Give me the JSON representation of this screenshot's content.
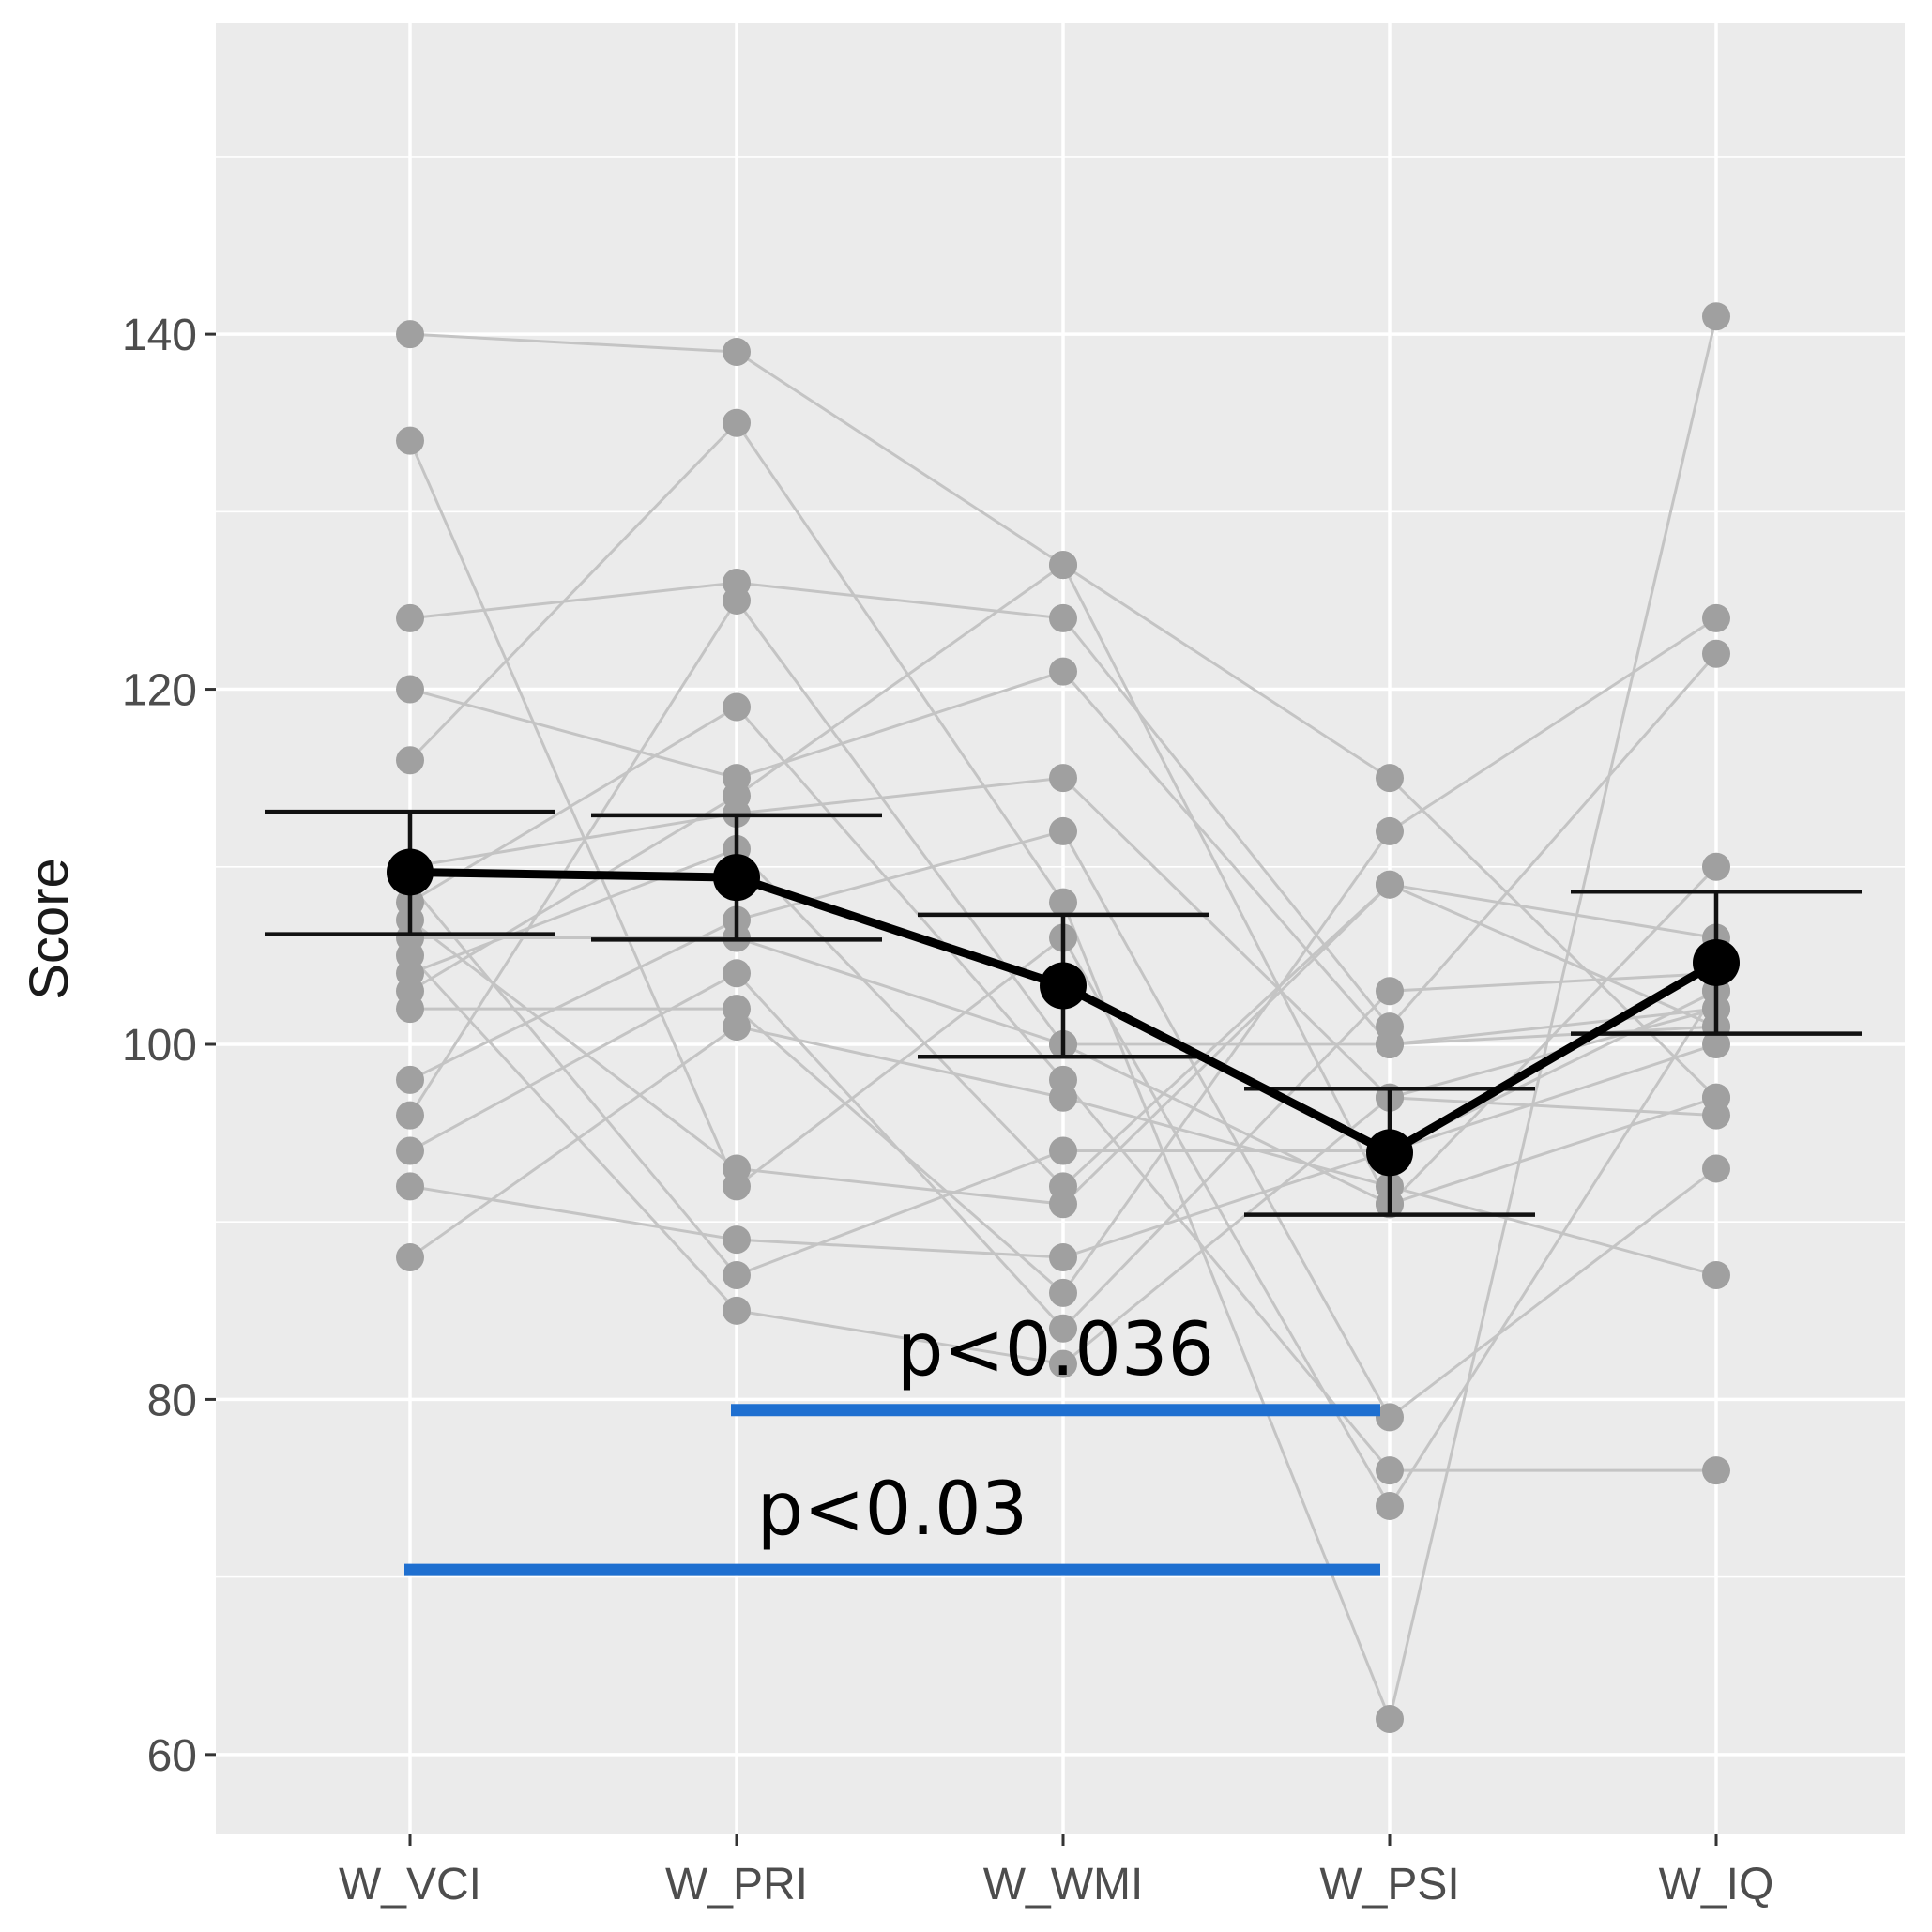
{
  "chart_data": {
    "type": "line",
    "title": "",
    "xlabel": "",
    "ylabel": "Score",
    "ylim": [
      55.5,
      157.5
    ],
    "yticks": [
      60,
      80,
      100,
      120,
      140
    ],
    "categories": [
      "W_VCI",
      "W_PRI",
      "W_WMI",
      "W_PSI",
      "W_IQ"
    ],
    "subjects": [
      {
        "values": [
          140,
          139,
          127,
          115,
          97
        ]
      },
      {
        "values": [
          134,
          92,
          106,
          74,
          103
        ]
      },
      {
        "values": [
          124,
          126,
          124,
          101,
          122
        ]
      },
      {
        "values": [
          120,
          115,
          121,
          100,
          102
        ]
      },
      {
        "values": [
          116,
          135,
          108,
          62,
          141
        ]
      },
      {
        "values": [
          110,
          113,
          115,
          97,
          96
        ]
      },
      {
        "values": [
          108,
          119,
          98,
          76,
          76
        ]
      },
      {
        "values": [
          106,
          106,
          100,
          100,
          101
        ]
      },
      {
        "values": [
          104,
          111,
          92,
          109,
          106
        ]
      },
      {
        "values": [
          102,
          102,
          86,
          112,
          124
        ]
      },
      {
        "values": [
          98,
          107,
          112,
          79,
          93
        ]
      },
      {
        "values": [
          96,
          125,
          100,
          91,
          110
        ]
      },
      {
        "values": [
          94,
          104,
          84,
          103,
          104
        ]
      },
      {
        "values": [
          92,
          89,
          88,
          94,
          100
        ]
      },
      {
        "values": [
          88,
          101,
          97,
          92,
          87
        ]
      },
      {
        "values": [
          109,
          87,
          94,
          94,
          103
        ]
      },
      {
        "values": [
          107,
          93,
          91,
          109,
          101
        ]
      },
      {
        "values": [
          105,
          85,
          82,
          97,
          102
        ]
      },
      {
        "values": [
          103,
          114,
          127,
          91,
          97
        ]
      }
    ],
    "mean": {
      "values": [
        109.7,
        109.4,
        103.3,
        93.9,
        104.6
      ],
      "upper": [
        113.1,
        112.9,
        107.3,
        97.5,
        108.6
      ],
      "lower": [
        106.2,
        105.9,
        99.3,
        90.4,
        100.6
      ]
    },
    "significance": [
      {
        "from": "W_PRI",
        "to": "W_PSI",
        "y": 79.4,
        "label": "p<0.036"
      },
      {
        "from": "W_VCI",
        "to": "W_PSI",
        "y": 70.4,
        "label": "p<0.03"
      }
    ]
  }
}
